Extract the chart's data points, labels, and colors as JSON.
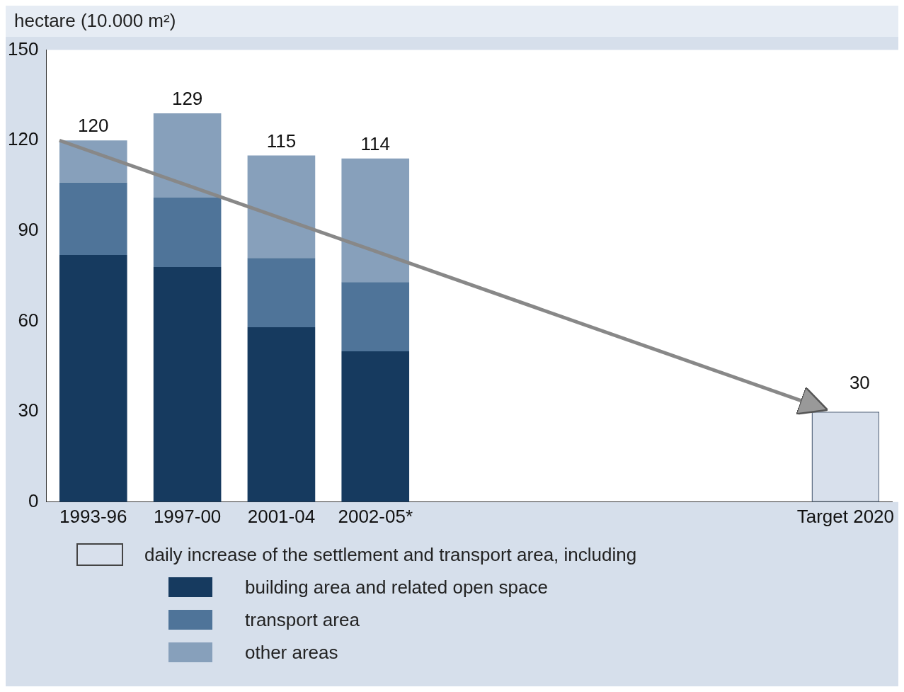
{
  "chart_data": {
    "type": "bar",
    "ylabel": "hectare (10.000 m²)",
    "categories": [
      "1993-96",
      "1997-00",
      "2001-04",
      "2002-05*",
      null,
      null,
      null,
      null,
      "Target 2020"
    ],
    "stacked": true,
    "series": [
      {
        "name": "daily increase of the settlement and transport area, including",
        "color": "#d8e0ec",
        "values": [
          null,
          null,
          null,
          null,
          null,
          null,
          null,
          null,
          30
        ]
      },
      {
        "name": "building area and related open space",
        "color": "#163a5f",
        "values": [
          82,
          78,
          58,
          50,
          null,
          null,
          null,
          null,
          null
        ]
      },
      {
        "name": "transport area",
        "color": "#4f7499",
        "values": [
          24,
          23,
          23,
          23,
          null,
          null,
          null,
          null,
          null
        ]
      },
      {
        "name": "other areas",
        "color": "#87a0bb",
        "values": [
          14,
          28,
          34,
          41,
          null,
          null,
          null,
          null,
          null
        ]
      }
    ],
    "totals": [
      "120",
      "129",
      "115",
      "114",
      null,
      null,
      null,
      null,
      "30"
    ],
    "ylim": [
      0,
      150
    ],
    "yticks": [
      0,
      30,
      60,
      90,
      120,
      150
    ],
    "grid": false,
    "legend": "bottom"
  }
}
